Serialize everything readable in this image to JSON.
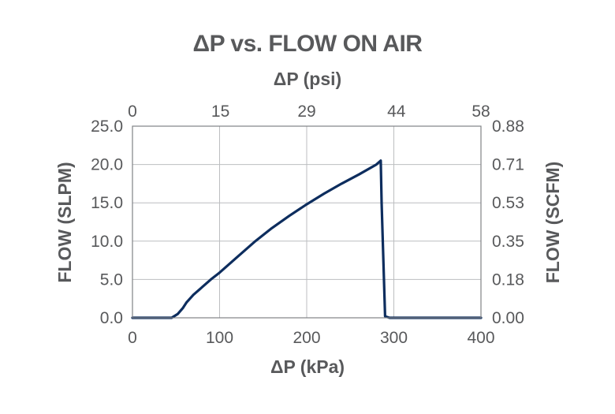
{
  "chart_data": {
    "type": "line",
    "title": "ΔP vs. FLOW ON AIR",
    "xlabel": "ΔP (kPa)",
    "x2label": "ΔP (psi)",
    "ylabel": "FLOW (SLPM)",
    "y2label": "FLOW (SCFM)",
    "xlim": [
      0,
      400
    ],
    "ylim": [
      0,
      25
    ],
    "grid": true,
    "x_ticks": [
      0,
      100,
      200,
      300,
      400
    ],
    "x_tick_labels": [
      "0",
      "100",
      "200",
      "300",
      "400"
    ],
    "x2_ticks": [
      0,
      101,
      200,
      303,
      400
    ],
    "x2_tick_labels": [
      "0",
      "15",
      "29",
      "44",
      "58"
    ],
    "y_ticks": [
      0,
      5,
      10,
      15,
      20,
      25
    ],
    "y_tick_labels": [
      "0.0",
      "5.0",
      "10.0",
      "15.0",
      "20.0",
      "25.0"
    ],
    "y2_tick_labels": [
      "0.00",
      "0.18",
      "0.35",
      "0.53",
      "0.71",
      "0.88"
    ],
    "colors": {
      "line": "#0d2d5e",
      "text": "#58595b",
      "grid": "#bcbec0",
      "frame": "#808285"
    },
    "series": [
      {
        "x": [
          0,
          20,
          45,
          52,
          58,
          62,
          70,
          80,
          90,
          100,
          120,
          140,
          160,
          180,
          200,
          220,
          240,
          260,
          280,
          285,
          286,
          290,
          295,
          300,
          350,
          400
        ],
        "values": [
          0,
          0,
          0,
          0.5,
          1.3,
          2.0,
          3.0,
          4.0,
          5.0,
          5.9,
          7.9,
          9.9,
          11.7,
          13.3,
          14.8,
          16.2,
          17.5,
          18.7,
          20.0,
          20.5,
          15.0,
          0.2,
          0,
          0,
          0,
          0
        ]
      }
    ]
  }
}
